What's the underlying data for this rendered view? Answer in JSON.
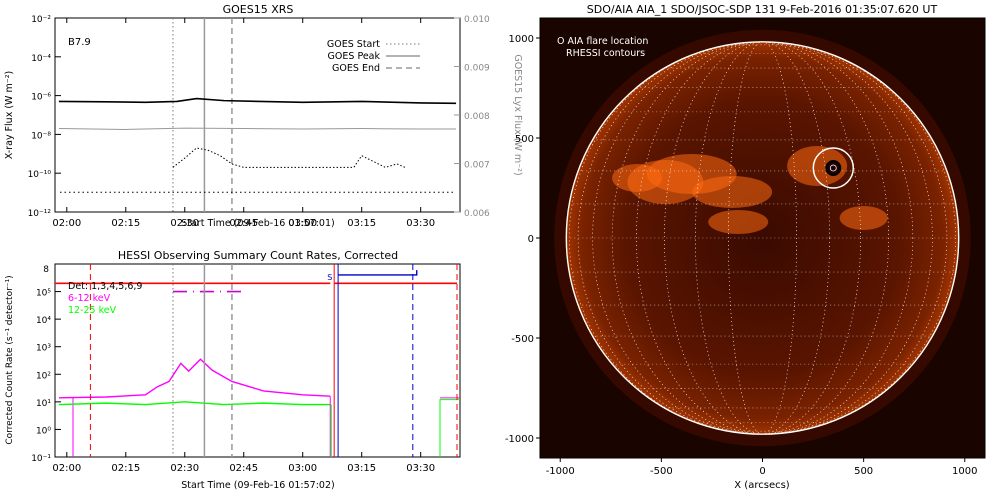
{
  "chart_data": [
    {
      "type": "line",
      "title": "GOES15 XRS",
      "annotation": "B7.9",
      "xlabel": "Start Time (09-Feb-16 01:57:01)",
      "ylabel": "X-ray Flux (W m⁻²)",
      "y2label": "GOES15 Lyx Flux (W m⁻²)",
      "x_ticks": [
        "02:00",
        "02:15",
        "02:30",
        "02:45",
        "03:00",
        "03:15",
        "03:30"
      ],
      "y_ticks": [
        "10⁻²",
        "10⁻⁴",
        "10⁻⁶",
        "10⁻⁸",
        "10⁻¹⁰",
        "10⁻¹²"
      ],
      "y2_ticks": [
        "0.010",
        "0.009",
        "0.008",
        "0.007",
        "0.006"
      ],
      "ylim": [
        "1e-12",
        "1e-2"
      ],
      "y2lim": [
        0.006,
        0.01
      ],
      "legend": [
        "GOES Start",
        "GOES Peak",
        "GOES End"
      ],
      "markers": {
        "start": "02:27",
        "peak": "02:35",
        "end": "02:42"
      },
      "series": [
        {
          "name": "Long",
          "color": "#000000",
          "x": [
            "01:58",
            "02:10",
            "02:20",
            "02:28",
            "02:33",
            "02:40",
            "03:00",
            "03:15",
            "03:30",
            "03:39"
          ],
          "y": [
            "5e-7",
            "4.8e-7",
            "4.5e-7",
            "5e-7",
            "7e-7",
            "5.5e-7",
            "4.5e-7",
            "5e-7",
            "4.2e-7",
            "4e-7"
          ]
        },
        {
          "name": "Lyx",
          "color": "#999999",
          "x": [
            "01:58",
            "02:15",
            "02:30",
            "02:45",
            "03:00",
            "03:15",
            "03:30",
            "03:39"
          ],
          "y": [
            "2e-8",
            "1.8e-8",
            "2.1e-8",
            "2e-8",
            "1.9e-8",
            "2e-8",
            "1.9e-8",
            "1.9e-8"
          ]
        },
        {
          "name": "Short",
          "color": "#000000",
          "x": [
            "02:27",
            "02:30",
            "02:33",
            "02:36",
            "02:39",
            "02:42",
            "02:45",
            "03:13",
            "03:15",
            "03:18",
            "03:21",
            "03:24",
            "03:26"
          ],
          "y": [
            "2e-10",
            "6e-10",
            "2e-9",
            "1.5e-9",
            "8e-10",
            "3e-10",
            "2e-10",
            "2e-10",
            "8e-10",
            "4e-10",
            "2e-10",
            "3e-10",
            "2e-10"
          ]
        }
      ]
    },
    {
      "type": "line",
      "title": "HESSI Observing Summary Count Rates, Corrected",
      "xlabel": "Start Time (09-Feb-16 01:57:02)",
      "ylabel": "Corrected Count Rate (s⁻¹ detector⁻¹)",
      "x_ticks": [
        "02:00",
        "02:15",
        "02:30",
        "02:45",
        "03:00",
        "03:15",
        "03:30"
      ],
      "y_ticks": [
        "10⁵",
        "10⁴",
        "10³",
        "10²",
        "10¹",
        "10⁰",
        "10⁻¹"
      ],
      "y_top_tick": "8",
      "ylim": [
        "1e-1",
        "1e6"
      ],
      "legend": [
        "Det: 1,3,4,5,6,9",
        "6-12 keV",
        "12-25 keV"
      ],
      "flag_label": "S",
      "series": [
        {
          "name": "6-12 keV",
          "color": "#ff00ff",
          "x": [
            "01:58",
            "02:10",
            "02:20",
            "02:23",
            "02:26",
            "02:29",
            "02:31",
            "02:34",
            "02:37",
            "02:42",
            "02:50",
            "03:00",
            "03:07"
          ],
          "y": [
            14,
            15,
            18,
            35,
            55,
            250,
            130,
            350,
            140,
            55,
            25,
            18,
            16
          ]
        },
        {
          "name": "12-25 keV",
          "color": "#00ff00",
          "x": [
            "01:58",
            "02:10",
            "02:20",
            "02:30",
            "02:40",
            "02:50",
            "03:00",
            "03:07"
          ],
          "y": [
            8,
            9,
            8,
            10,
            8,
            9,
            8,
            8
          ]
        }
      ]
    },
    {
      "type": "image",
      "title": "SDO/AIA AIA_1 SDO/JSOC-SDP 131  9-Feb-2016 01:35:07.620 UT",
      "xlabel": "X (arcsecs)",
      "x_ticks": [
        "-1000",
        "-500",
        "0",
        "500",
        "1000"
      ],
      "y_ticks": [
        "1000",
        "500",
        "0",
        "-500",
        "-1000"
      ],
      "legend": [
        "O AIA flare location",
        "RHESSI contours"
      ],
      "flare_location": [
        350,
        350
      ]
    }
  ]
}
